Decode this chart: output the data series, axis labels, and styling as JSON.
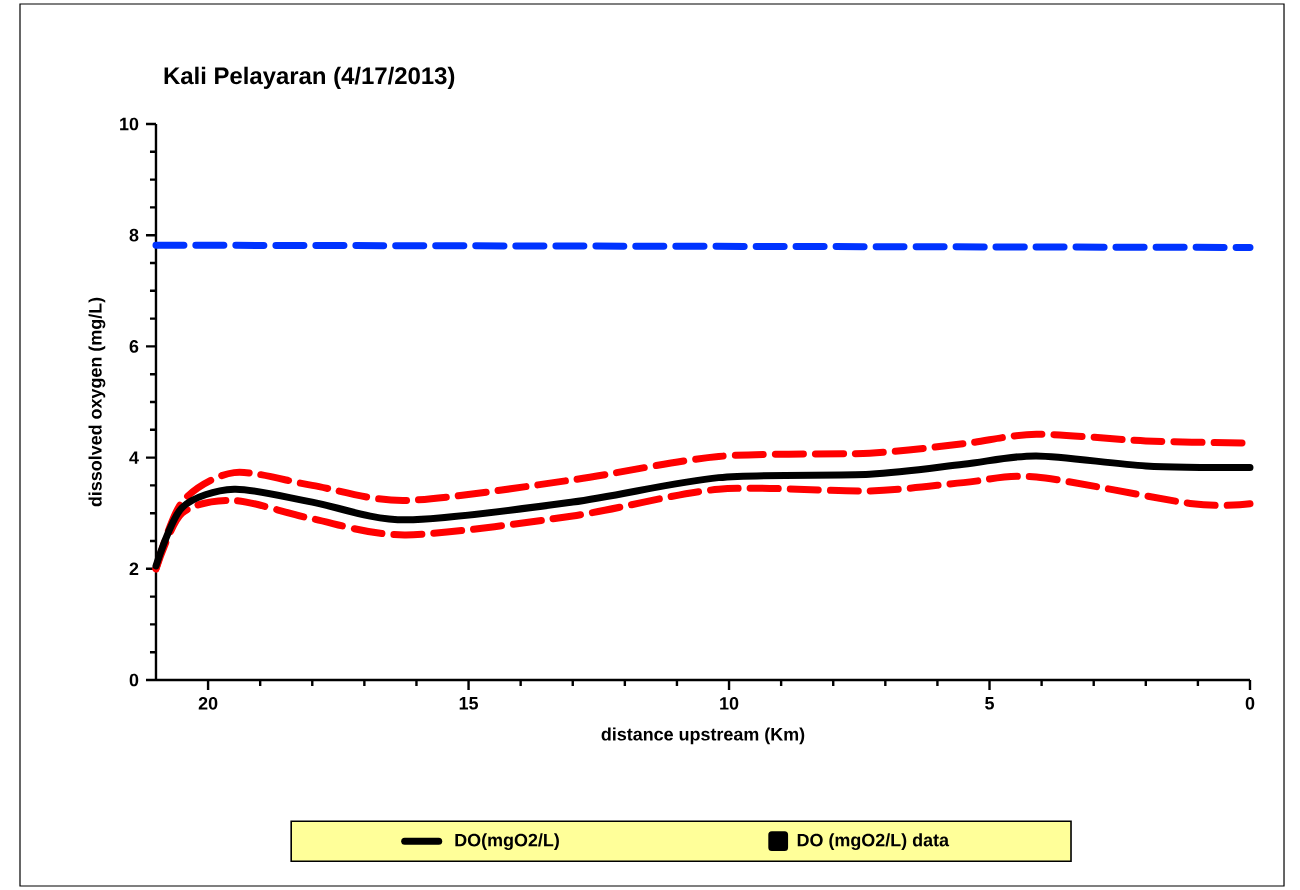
{
  "chart_data": {
    "type": "line",
    "title": "Kali Pelayaran (4/17/2013)",
    "xlabel": "distance upstream (Km)",
    "ylabel": "dissolved oxygen (mg/L)",
    "xlim": [
      21,
      0
    ],
    "ylim": [
      0,
      10
    ],
    "xticks": [
      20,
      15,
      10,
      5,
      0
    ],
    "yticks": [
      0,
      2,
      4,
      6,
      8,
      10
    ],
    "legend": "bottom",
    "grid": false,
    "series": [
      {
        "color": "#0033ff",
        "line_style": "dashed",
        "x": [
          21,
          0
        ],
        "values": [
          7.82,
          7.78
        ]
      },
      {
        "color": "#ff0000",
        "line_style": "dashed",
        "x": [
          21,
          20.5,
          19.5,
          18,
          16.2,
          13,
          10.2,
          7.3,
          5.5,
          4.1,
          2,
          0
        ],
        "values": [
          2.0,
          3.2,
          3.73,
          3.5,
          3.23,
          3.6,
          4.02,
          4.08,
          4.25,
          4.42,
          4.3,
          4.26
        ]
      },
      {
        "color": "#ff0000",
        "line_style": "dashed",
        "x": [
          21,
          20.5,
          19.5,
          18,
          16.2,
          13,
          10.2,
          7.3,
          5.5,
          4.1,
          1.1,
          0
        ],
        "values": [
          2.0,
          3.0,
          3.23,
          2.9,
          2.61,
          2.95,
          3.43,
          3.4,
          3.55,
          3.65,
          3.17,
          3.17
        ]
      },
      {
        "name": "DO(mgO2/L)",
        "color": "#000000",
        "line_style": "solid",
        "x": [
          21,
          20.5,
          19.5,
          18,
          16.2,
          13,
          10.2,
          7.3,
          5.5,
          4.1,
          2,
          0
        ],
        "values": [
          2.05,
          3.1,
          3.43,
          3.2,
          2.88,
          3.2,
          3.64,
          3.7,
          3.88,
          4.03,
          3.85,
          3.82
        ]
      },
      {
        "name": "DO (mgO2/L) data",
        "color": "#000000",
        "marker": "square"
      }
    ]
  }
}
